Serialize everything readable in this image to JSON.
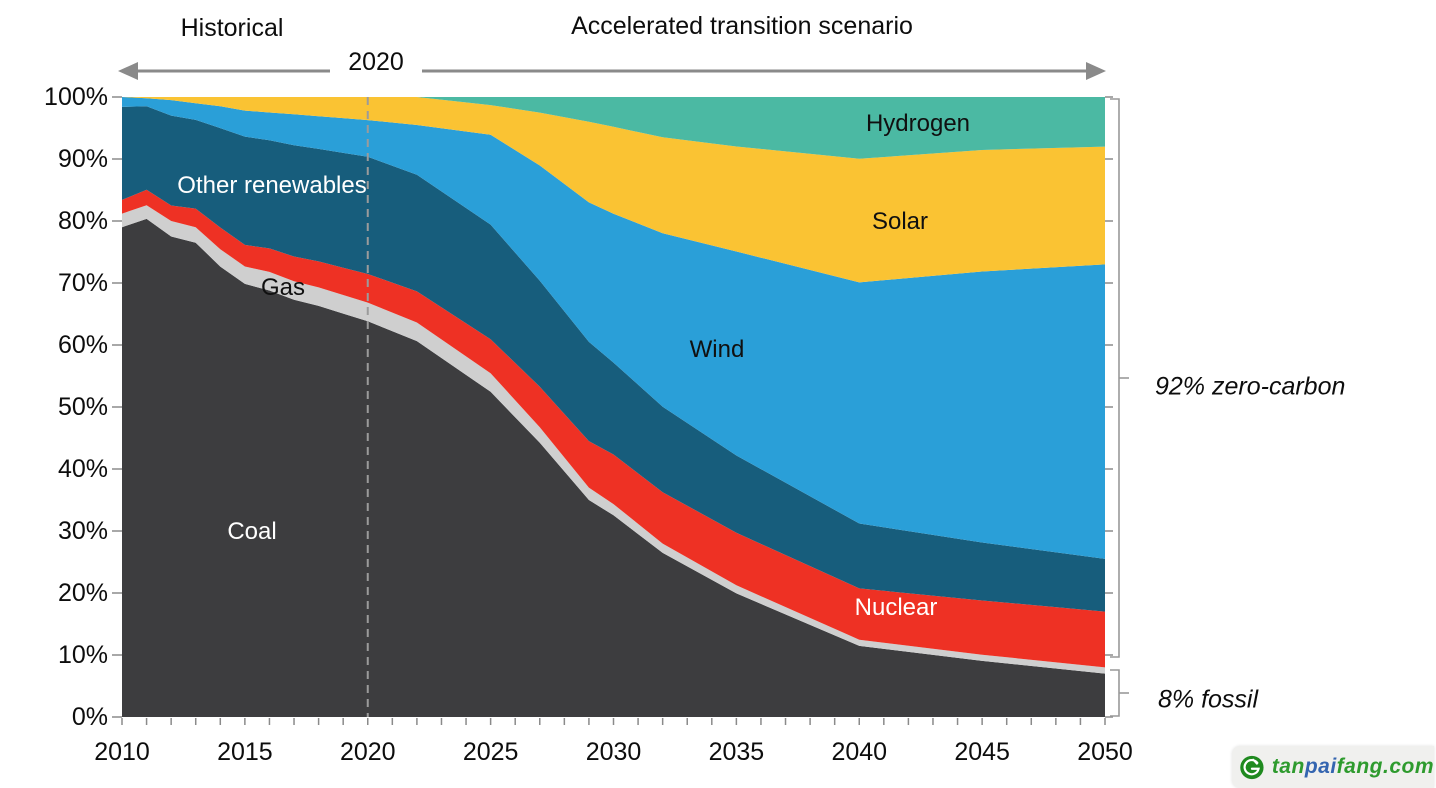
{
  "header": {
    "historical_label": "Historical",
    "year_marker": "2020",
    "scenario_label": "Accelerated transition scenario"
  },
  "chart_data": {
    "type": "area",
    "stacked": true,
    "unit": "%",
    "ylim": [
      0,
      100
    ],
    "grid": false,
    "marker_line_x": 2020,
    "x": [
      2010,
      2011,
      2012,
      2013,
      2014,
      2015,
      2016,
      2017,
      2018,
      2019,
      2020,
      2022,
      2025,
      2027,
      2029,
      2030,
      2032,
      2035,
      2040,
      2045,
      2050
    ],
    "series": [
      {
        "name": "Coal",
        "color": "#3d3d3f",
        "values": [
          79,
          80.5,
          77.5,
          76.5,
          72.5,
          70,
          69,
          67.5,
          66.5,
          65,
          63.5,
          60.5,
          52.5,
          44,
          35,
          32.5,
          26.5,
          20,
          11.5,
          9,
          7
        ]
      },
      {
        "name": "Gas",
        "color": "#cfcfcf",
        "values": [
          2.2,
          2.2,
          2.5,
          2.5,
          2.8,
          2.8,
          3,
          3,
          3,
          3,
          3,
          3,
          3,
          2.5,
          2,
          1.8,
          1.5,
          1.3,
          1,
          1,
          1
        ]
      },
      {
        "name": "Nuclear",
        "color": "#ee3124",
        "values": [
          2.2,
          2.5,
          2.5,
          3,
          3.5,
          3.5,
          3.8,
          4,
          4.2,
          4.4,
          4.6,
          5,
          5.5,
          6.5,
          7.5,
          8,
          8.3,
          8.5,
          8.3,
          8.7,
          9
        ]
      },
      {
        "name": "Other renewables",
        "color": "#175d7c",
        "values": [
          15,
          13.5,
          14.5,
          14.3,
          16,
          17.5,
          17.5,
          18,
          18.2,
          18.5,
          18.8,
          18.8,
          18.5,
          17,
          16,
          14.8,
          13.8,
          12.5,
          10.5,
          9.3,
          8.5
        ]
      },
      {
        "name": "Wind",
        "color": "#2a9fd8",
        "values": [
          1.6,
          1.3,
          2.5,
          2.7,
          3.5,
          4.2,
          4.5,
          5,
          5.3,
          5.6,
          5.9,
          8,
          14.5,
          18.5,
          22.5,
          24,
          28,
          33,
          39,
          43.5,
          47.5
        ]
      },
      {
        "name": "Solar",
        "color": "#fac333",
        "values": [
          0,
          0.2,
          0.5,
          1,
          1.5,
          2.2,
          2.5,
          2.8,
          3.1,
          3.4,
          3.7,
          4.5,
          4.8,
          8.5,
          13,
          14,
          15.5,
          17,
          20,
          19.5,
          19
        ]
      },
      {
        "name": "Hydrogen",
        "color": "#4bb9a3",
        "values": [
          0,
          0,
          0,
          0,
          0,
          0,
          0,
          0,
          0,
          0,
          0,
          0,
          1.3,
          2.5,
          4,
          4.8,
          6.5,
          8,
          10,
          8.5,
          8
        ]
      }
    ],
    "y_tick_labels": [
      "100%",
      "90%",
      "80%",
      "70%",
      "60%",
      "50%",
      "40%",
      "30%",
      "20%",
      "10%",
      "0%"
    ],
    "x_tick_labels": [
      "2010",
      "2015",
      "2020",
      "2025",
      "2030",
      "2035",
      "2040",
      "2045",
      "2050"
    ],
    "colors": {
      "arrow_gray": "#8a8a8a",
      "dashed_line_gray": "#9b9b9b",
      "bracket_gray": "#999999"
    }
  },
  "annotations": {
    "zero_carbon": "92% zero-carbon",
    "fossil": "8% fossil"
  },
  "watermark": {
    "logo": "tanpaifang-logo",
    "parts": [
      {
        "text": "tan",
        "color": "#2e9b2e"
      },
      {
        "text": "pai",
        "color": "#3465b0"
      },
      {
        "text": "fang.com",
        "color": "#2e9b2e"
      }
    ]
  }
}
